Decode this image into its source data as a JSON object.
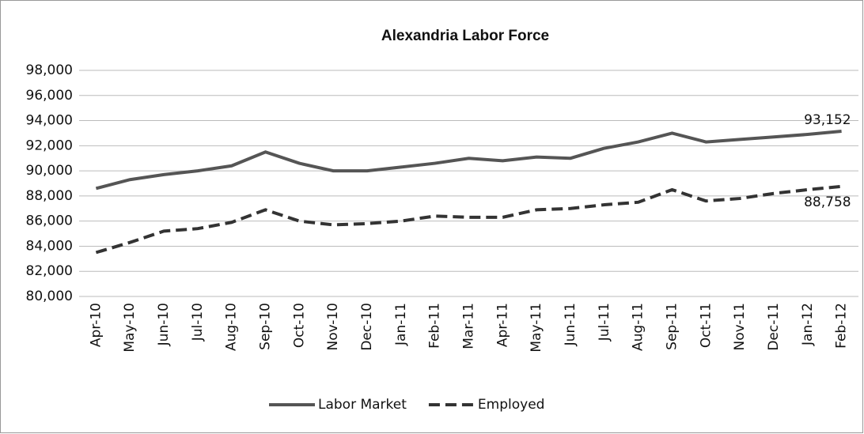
{
  "chart_data": {
    "type": "line",
    "title": "Alexandria Labor Force",
    "categories": [
      "Apr-10",
      "May-10",
      "Jun-10",
      "Jul-10",
      "Aug-10",
      "Sep-10",
      "Oct-10",
      "Nov-10",
      "Dec-10",
      "Jan-11",
      "Feb-11",
      "Mar-11",
      "Apr-11",
      "May-11",
      "Jun-11",
      "Jul-11",
      "Aug-11",
      "Sep-11",
      "Oct-11",
      "Nov-11",
      "Dec-11",
      "Jan-12",
      "Feb-12"
    ],
    "series": [
      {
        "name": "Labor Market",
        "color": "#555555",
        "dash": false,
        "values": [
          88600,
          89300,
          89700,
          90000,
          90400,
          91500,
          90600,
          90000,
          90000,
          90300,
          90600,
          91000,
          90800,
          91100,
          91000,
          91800,
          92300,
          93000,
          92300,
          92500,
          92700,
          92900,
          93152
        ],
        "value_labels": [
          null,
          null,
          null,
          null,
          null,
          null,
          null,
          null,
          null,
          null,
          null,
          null,
          null,
          null,
          null,
          null,
          null,
          null,
          null,
          null,
          null,
          null,
          "93,152"
        ]
      },
      {
        "name": "Employed",
        "color": "#333333",
        "dash": true,
        "values": [
          83500,
          84300,
          85200,
          85400,
          85900,
          86900,
          86000,
          85700,
          85800,
          86000,
          86400,
          86300,
          86300,
          86900,
          87000,
          87300,
          87500,
          88500,
          87600,
          87800,
          88200,
          88500,
          88758
        ],
        "value_labels": [
          null,
          null,
          null,
          null,
          null,
          null,
          null,
          null,
          null,
          null,
          null,
          null,
          null,
          null,
          null,
          null,
          null,
          null,
          null,
          null,
          null,
          null,
          "88,758"
        ]
      }
    ],
    "ylim": [
      80000,
      98000
    ],
    "yticks": [
      {
        "value": 80000,
        "label": "80,000"
      },
      {
        "value": 82000,
        "label": "82,000"
      },
      {
        "value": 84000,
        "label": "84,000"
      },
      {
        "value": 86000,
        "label": "86,000"
      },
      {
        "value": 88000,
        "label": "88,000"
      },
      {
        "value": 90000,
        "label": "90,000"
      },
      {
        "value": 92000,
        "label": "92,000"
      },
      {
        "value": 94000,
        "label": "94,000"
      },
      {
        "value": 96000,
        "label": "96,000"
      },
      {
        "value": 98000,
        "label": "98,000"
      }
    ],
    "grid": true,
    "legend": "bottom"
  }
}
